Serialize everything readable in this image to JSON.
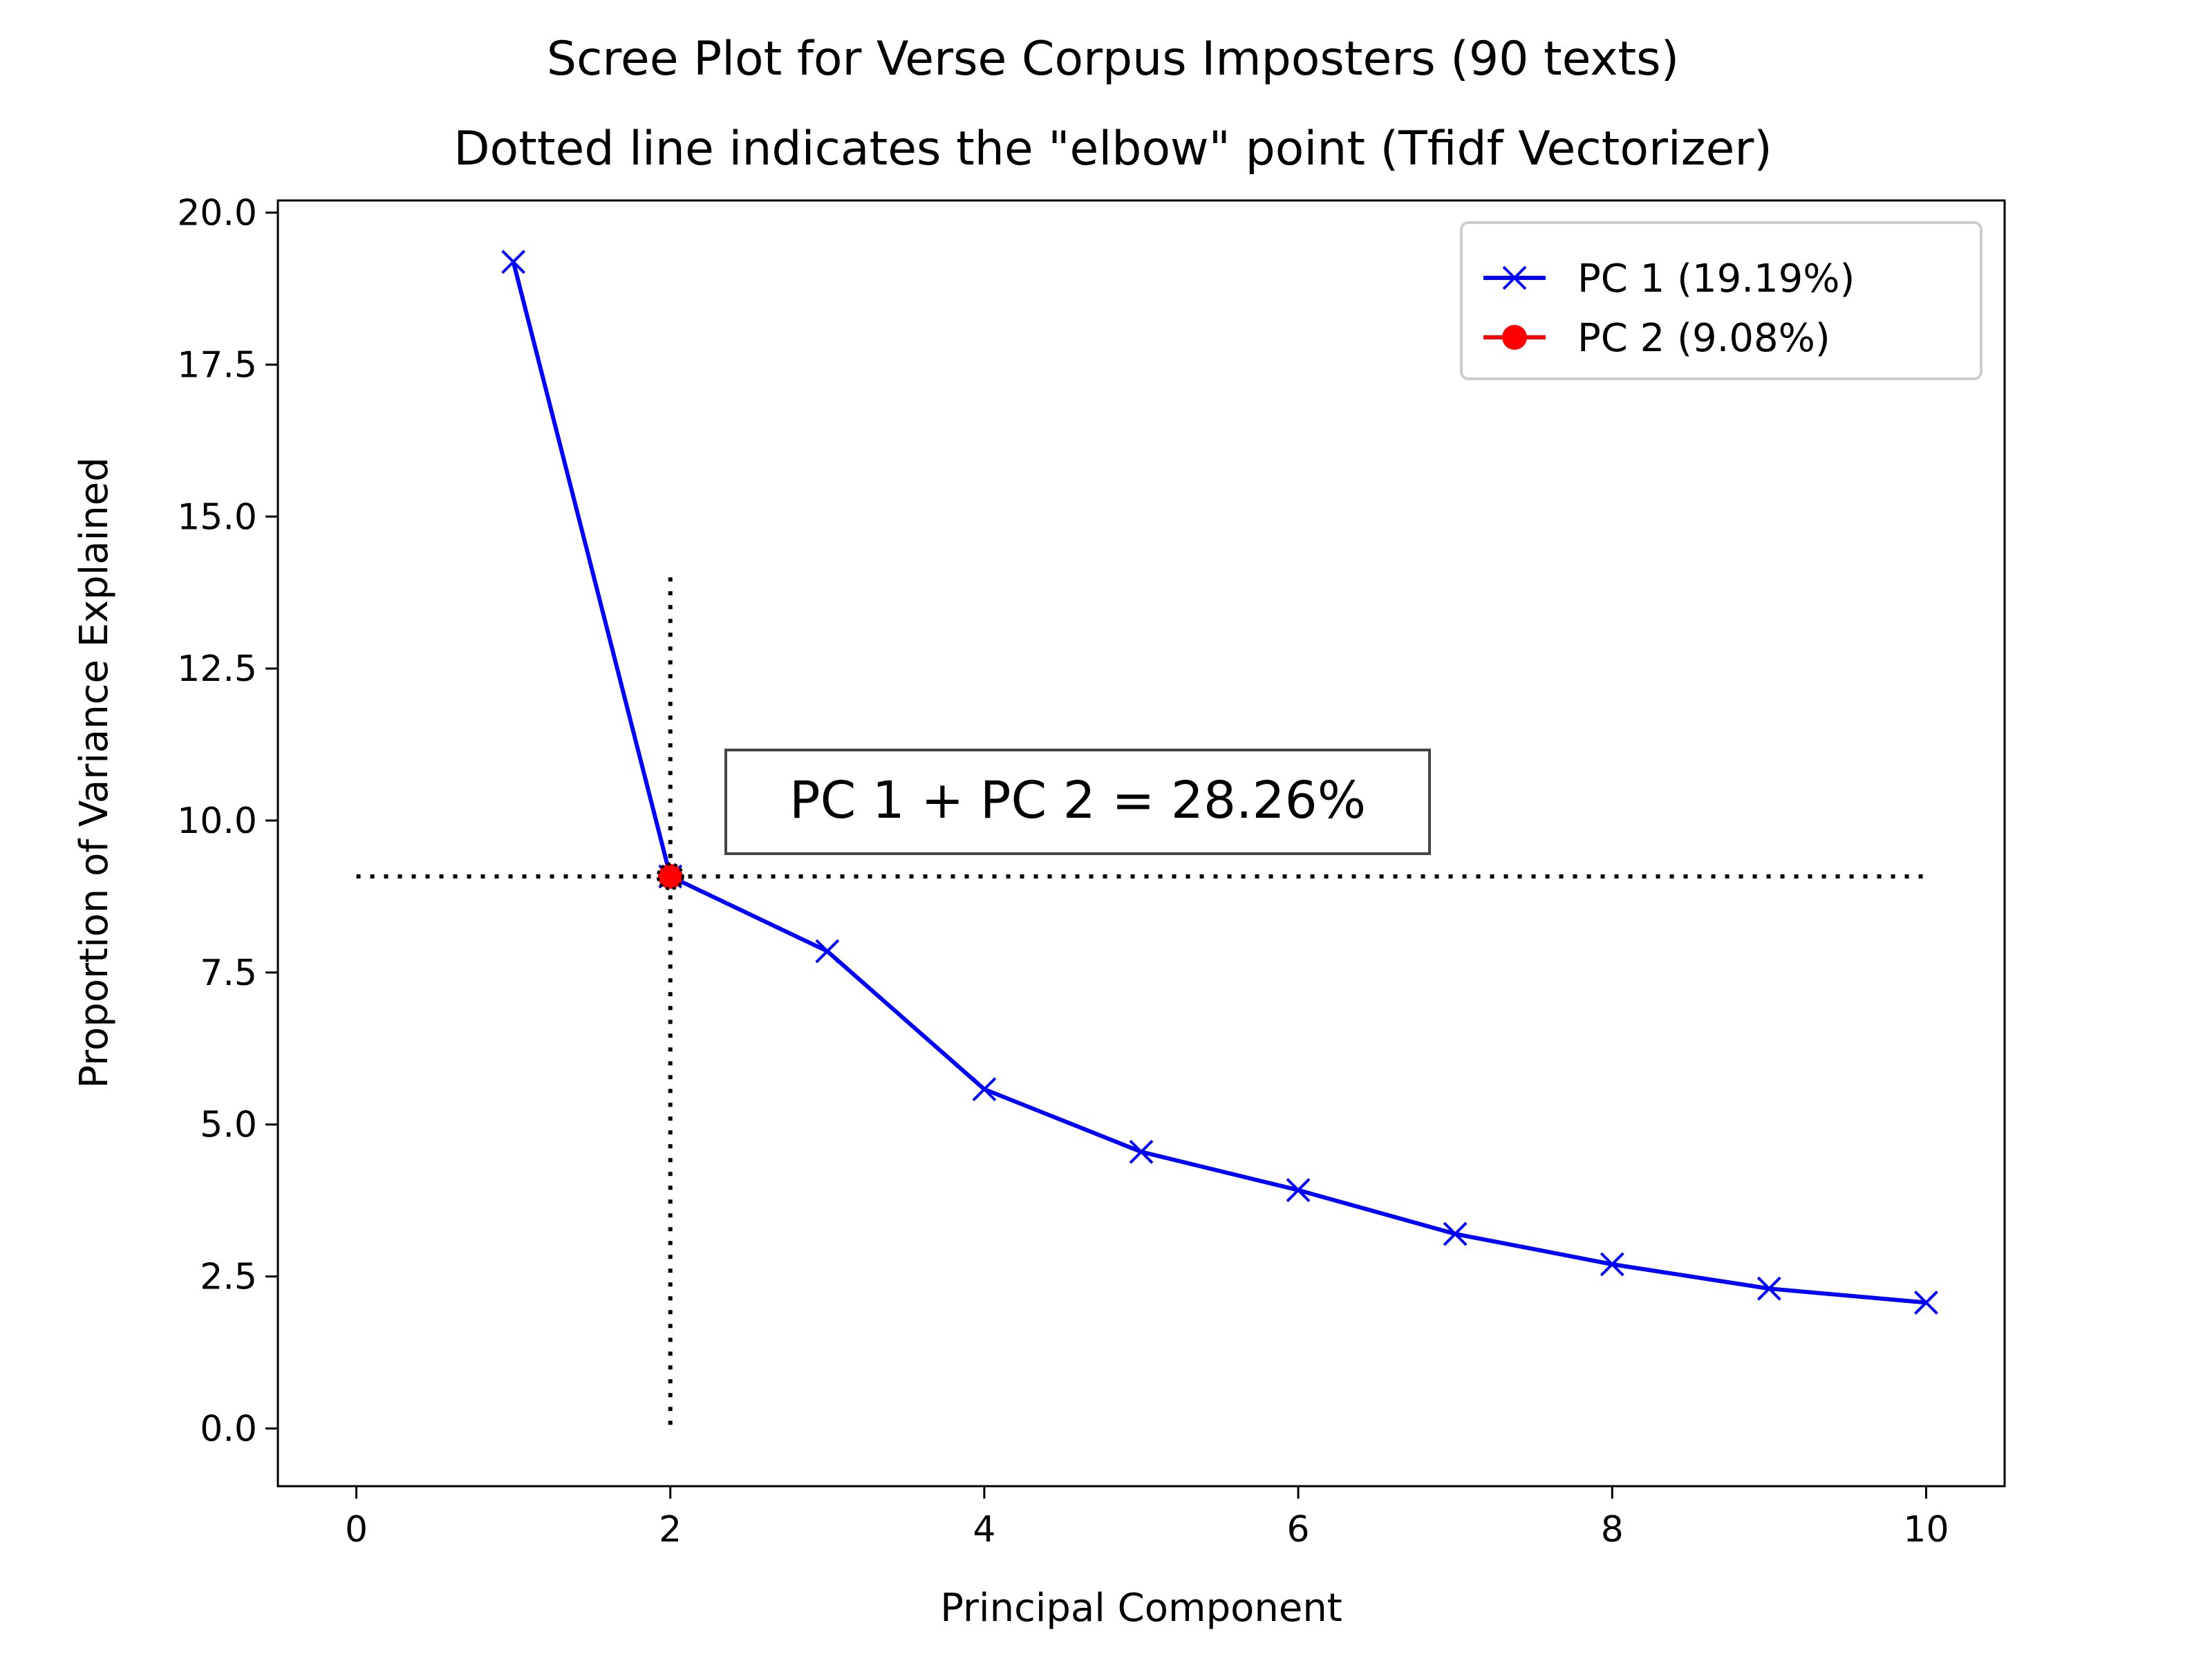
{
  "chart_data": {
    "type": "line",
    "title": "Scree Plot for Verse Corpus Imposters (90 texts)",
    "subtitle": "Dotted line indicates the \"elbow\" point (Tfidf Vectorizer)",
    "xlabel": "Principal Component",
    "ylabel": "Proportion of Variance Explained",
    "xlim": [
      -0.5,
      10.5
    ],
    "ylim": [
      -0.95,
      20.2
    ],
    "xticks": [
      0,
      2,
      4,
      6,
      8,
      10
    ],
    "xtick_labels": [
      "0",
      "2",
      "4",
      "6",
      "8",
      "10"
    ],
    "yticks": [
      0,
      2.5,
      5,
      7.5,
      10,
      12.5,
      15,
      17.5,
      20
    ],
    "ytick_labels": [
      "0.0",
      "2.5",
      "5.0",
      "7.5",
      "10.0",
      "12.5",
      "15.0",
      "17.5",
      "20.0"
    ],
    "grid": false,
    "legend_position": "top-right",
    "series": [
      {
        "name": "PC 1 (19.19%)",
        "color": "#0000ff",
        "marker": "x",
        "x": [
          1,
          2,
          3,
          4,
          5,
          6,
          7,
          8,
          9,
          10
        ],
        "y": [
          19.19,
          9.08,
          7.85,
          5.58,
          4.55,
          3.92,
          3.2,
          2.7,
          2.3,
          2.07
        ]
      },
      {
        "name": "PC 2 (9.08%)",
        "color": "#ff0000",
        "marker": "o",
        "x": [
          2
        ],
        "y": [
          9.08
        ]
      }
    ],
    "reference_lines": [
      {
        "orientation": "vertical",
        "x": 2,
        "y_from": 0,
        "y_to": 14,
        "style": "dotted",
        "color": "#000000"
      },
      {
        "orientation": "horizontal",
        "y": 9.08,
        "x_from": 0,
        "x_to": 10,
        "style": "dotted",
        "color": "#000000"
      }
    ],
    "annotation": {
      "text": "PC 1 + PC 2 = 28.26%",
      "x": 4.3,
      "y": 10.25
    }
  }
}
